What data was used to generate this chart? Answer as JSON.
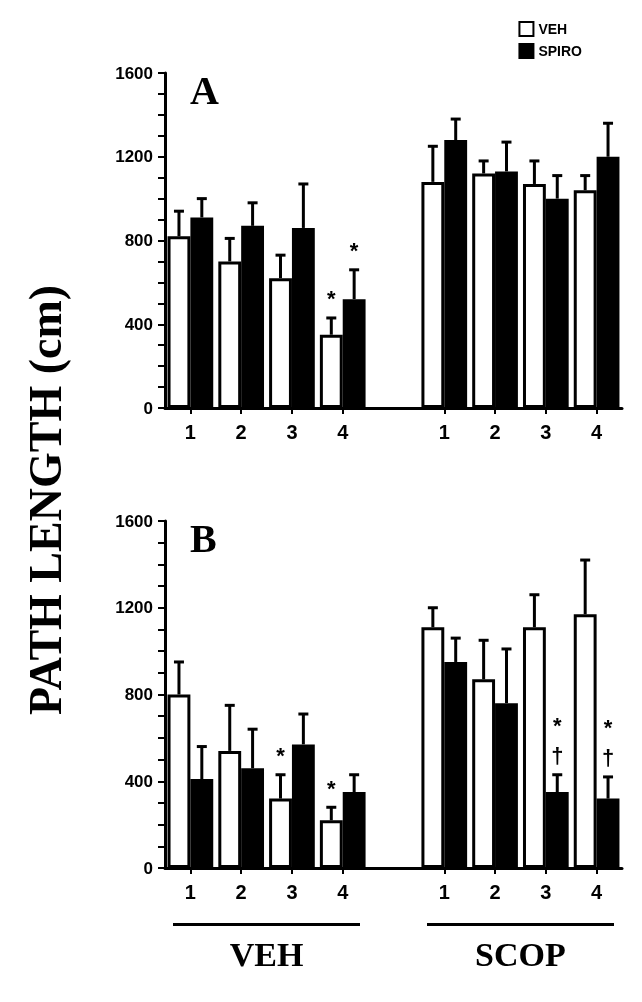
{
  "chart_data": [
    {
      "type": "bar",
      "title": "A",
      "ylabel": "PATH LENGTH (cm)",
      "categories": [
        "1",
        "2",
        "3",
        "4",
        null,
        "1",
        "2",
        "3",
        "4"
      ],
      "series": [
        {
          "name": "VEH",
          "color": "#ffffff",
          "values": [
            820,
            700,
            620,
            350,
            null,
            1080,
            1120,
            1070,
            1040
          ],
          "errors": [
            [
              820,
              940
            ],
            [
              700,
              810
            ],
            [
              620,
              730
            ],
            [
              350,
              430
            ],
            null,
            [
              1080,
              1250
            ],
            [
              1120,
              1180
            ],
            [
              1070,
              1180
            ],
            [
              1040,
              1110
            ]
          ]
        },
        {
          "name": "SPIRO",
          "color": "#000000",
          "values": [
            910,
            870,
            860,
            520,
            null,
            1280,
            1130,
            1000,
            1200
          ],
          "errors": [
            [
              910,
              1000
            ],
            [
              870,
              980
            ],
            [
              860,
              1070
            ],
            [
              520,
              660
            ],
            null,
            [
              1280,
              1380
            ],
            [
              1130,
              1270
            ],
            [
              1000,
              1110
            ],
            [
              1200,
              1360
            ]
          ]
        }
      ],
      "ylim": [
        0,
        1600
      ],
      "yticks": [
        0,
        {
          "value": 100,
          "label": null
        },
        {
          "value": 200,
          "label": null
        },
        {
          "value": 300,
          "label": null
        },
        400,
        {
          "value": 500,
          "label": null
        },
        {
          "value": 600,
          "label": null
        },
        {
          "value": 700,
          "label": null
        },
        800,
        {
          "value": 900,
          "label": null
        },
        {
          "value": 1000,
          "label": null
        },
        {
          "value": 1100,
          "label": null
        },
        1200,
        {
          "value": 1300,
          "label": null
        },
        {
          "value": 1400,
          "label": null
        },
        {
          "value": 1500,
          "label": null
        },
        1600
      ],
      "legend": "top right",
      "annotations": [
        "*",
        "*"
      ]
    },
    {
      "type": "bar",
      "title": "B",
      "categories": [
        "1",
        "2",
        "3",
        "4",
        null,
        "1",
        "2",
        "3",
        "4"
      ],
      "series": [
        {
          "color": "#ffffff",
          "values": [
            800,
            540,
            320,
            220,
            null,
            1110,
            870,
            1110,
            1170
          ],
          "errors": [
            [
              800,
              950
            ],
            [
              540,
              750
            ],
            [
              320,
              430
            ],
            [
              220,
              280
            ],
            null,
            [
              1110,
              1200
            ],
            [
              870,
              1050
            ],
            [
              1110,
              1260
            ],
            [
              1170,
              1420
            ]
          ]
        },
        {
          "color": "#000000",
          "values": [
            410,
            460,
            570,
            350,
            null,
            950,
            760,
            350,
            320
          ],
          "errors": [
            [
              410,
              560
            ],
            [
              460,
              640
            ],
            [
              570,
              710
            ],
            [
              350,
              430
            ],
            null,
            [
              950,
              1060
            ],
            [
              760,
              1010
            ],
            [
              350,
              430
            ],
            [
              320,
              420
            ]
          ]
        }
      ],
      "ylim": [
        0,
        1600
      ],
      "yticks": [
        0,
        {
          "value": 100,
          "label": null
        },
        {
          "value": 200,
          "label": null
        },
        {
          "value": 300,
          "label": null
        },
        400,
        {
          "value": 500,
          "label": null
        },
        {
          "value": 600,
          "label": null
        },
        {
          "value": 700,
          "label": null
        },
        800,
        {
          "value": 900,
          "label": null
        },
        {
          "value": 1000,
          "label": null
        },
        {
          "value": 1100,
          "label": null
        },
        1200,
        {
          "value": 1300,
          "label": null
        },
        {
          "value": 1400,
          "label": null
        },
        {
          "value": 1500,
          "label": null
        },
        1600
      ],
      "annotations": [
        "*",
        "*",
        "*\n†",
        "*\n†",
        "VEH",
        "SCOP"
      ]
    }
  ]
}
